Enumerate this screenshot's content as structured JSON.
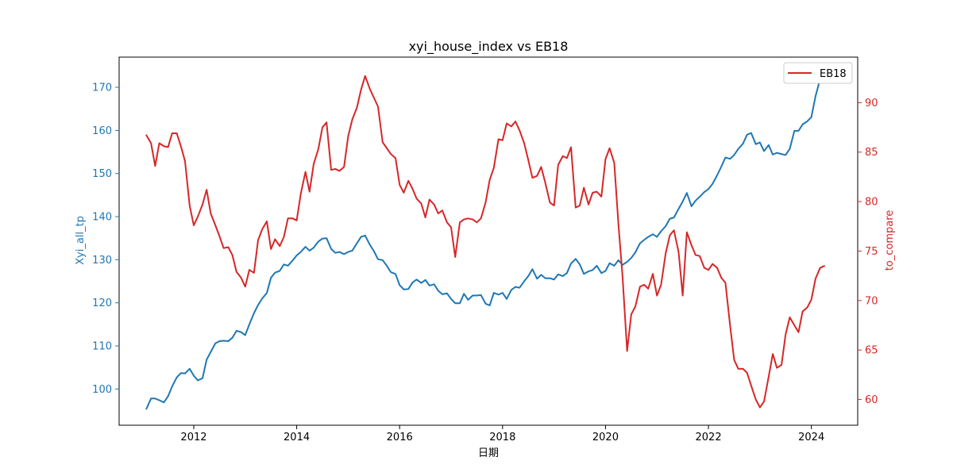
{
  "chart_data": {
    "type": "line",
    "title": "xyi_house_index vs EB18",
    "xlabel": "日期",
    "ylabel_left": "Xyi_all_tp",
    "ylabel_right": "to_compare",
    "colors": {
      "left": "#1f77b4",
      "right": "#d62728"
    },
    "x_ticks": [
      "2012",
      "2014",
      "2016",
      "2018",
      "2020",
      "2022",
      "2024"
    ],
    "x_tick_values": [
      2012,
      2014,
      2016,
      2018,
      2020,
      2022,
      2024
    ],
    "xlim": [
      2010.55,
      2024.9
    ],
    "y_left_ticks": [
      "100",
      "110",
      "120",
      "130",
      "140",
      "150",
      "160",
      "170"
    ],
    "y_left_tick_values": [
      100,
      110,
      120,
      130,
      140,
      150,
      160,
      170
    ],
    "y_left_lim": [
      91.6,
      177.0
    ],
    "y_right_ticks": [
      "60",
      "65",
      "70",
      "75",
      "80",
      "85",
      "90"
    ],
    "y_right_tick_values": [
      60,
      65,
      70,
      75,
      80,
      85,
      90
    ],
    "y_right_lim": [
      57.4,
      94.6
    ],
    "legend": {
      "position": "top-right",
      "entries": [
        "EB18"
      ]
    },
    "series": [
      {
        "axis": "left",
        "x": [
          2011.08,
          2011.17,
          2011.25,
          2011.33,
          2011.42,
          2011.5,
          2011.58,
          2011.67,
          2011.75,
          2011.83,
          2011.92,
          2012.0,
          2012.08,
          2012.17,
          2012.25,
          2012.33,
          2012.42,
          2012.5,
          2012.58,
          2012.67,
          2012.75,
          2012.83,
          2012.92,
          2013.0,
          2013.08,
          2013.17,
          2013.25,
          2013.33,
          2013.42,
          2013.5,
          2013.58,
          2013.67,
          2013.75,
          2013.83,
          2013.92,
          2014.0,
          2014.08,
          2014.17,
          2014.25,
          2014.33,
          2014.42,
          2014.5,
          2014.58,
          2014.67,
          2014.75,
          2014.83,
          2014.92,
          2015.0,
          2015.08,
          2015.17,
          2015.25,
          2015.33,
          2015.42,
          2015.5,
          2015.58,
          2015.67,
          2015.75,
          2015.83,
          2015.92,
          2016.0,
          2016.08,
          2016.17,
          2016.25,
          2016.33,
          2016.42,
          2016.5,
          2016.58,
          2016.67,
          2016.75,
          2016.83,
          2016.92,
          2017.0,
          2017.08,
          2017.17,
          2017.25,
          2017.33,
          2017.42,
          2017.5,
          2017.58,
          2017.67,
          2017.75,
          2017.83,
          2017.92,
          2018.0,
          2018.08,
          2018.17,
          2018.25,
          2018.33,
          2018.42,
          2018.5,
          2018.58,
          2018.67,
          2018.75,
          2018.83,
          2018.92,
          2019.0,
          2019.08,
          2019.17,
          2019.25,
          2019.33,
          2019.42,
          2019.5,
          2019.58,
          2019.67,
          2019.75,
          2019.83,
          2019.92,
          2020.0,
          2020.08,
          2020.17,
          2020.25,
          2020.33,
          2020.42,
          2020.5,
          2020.58,
          2020.67,
          2020.75,
          2020.83,
          2020.92,
          2021.0,
          2021.08,
          2021.17,
          2021.25,
          2021.33,
          2021.42,
          2021.5,
          2021.58,
          2021.67,
          2021.75,
          2021.83,
          2021.92,
          2022.0,
          2022.08,
          2022.17,
          2022.25,
          2022.33,
          2022.42,
          2022.5,
          2022.58,
          2022.67,
          2022.75,
          2022.83,
          2022.92,
          2023.0,
          2023.08,
          2023.17,
          2023.25,
          2023.33,
          2023.42,
          2023.5,
          2023.58,
          2023.67,
          2023.75,
          2023.83,
          2023.92,
          2024.0,
          2024.08,
          2024.17,
          2024.25
        ],
        "values": [
          95.4,
          97.8,
          97.8,
          97.4,
          96.9,
          98.3,
          100.6,
          102.7,
          103.7,
          103.6,
          104.7,
          103.1,
          102.0,
          102.5,
          106.8,
          108.6,
          110.6,
          111.1,
          111.2,
          111.1,
          111.9,
          113.5,
          113.2,
          112.5,
          115.0,
          117.6,
          119.5,
          121.0,
          122.3,
          125.8,
          127.0,
          127.4,
          128.9,
          128.6,
          129.8,
          131.0,
          131.8,
          133.0,
          132.1,
          132.8,
          134.2,
          134.9,
          135.0,
          132.5,
          131.6,
          131.8,
          131.3,
          131.8,
          132.1,
          133.8,
          135.3,
          135.6,
          133.5,
          132.0,
          130.1,
          129.9,
          128.6,
          127.1,
          126.7,
          124.1,
          123.1,
          123.2,
          124.7,
          125.4,
          124.6,
          125.3,
          124.0,
          124.3,
          122.8,
          122.0,
          122.2,
          120.9,
          119.9,
          119.9,
          122.1,
          120.7,
          121.7,
          121.7,
          121.8,
          119.8,
          119.4,
          122.3,
          121.9,
          122.3,
          120.9,
          123.0,
          123.7,
          123.5,
          125.0,
          126.2,
          127.8,
          125.6,
          126.5,
          125.7,
          125.7,
          125.4,
          126.6,
          126.2,
          126.9,
          129.1,
          130.2,
          128.9,
          126.7,
          127.3,
          127.6,
          128.6,
          126.9,
          127.4,
          129.2,
          128.6,
          129.9,
          128.8,
          129.5,
          130.4,
          131.7,
          133.8,
          134.6,
          135.3,
          135.9,
          135.3,
          136.6,
          137.8,
          139.5,
          139.8,
          141.8,
          143.5,
          145.5,
          142.4,
          143.7,
          144.6,
          145.7,
          146.4,
          147.6,
          149.6,
          151.6,
          153.7,
          153.4,
          154.3,
          155.7,
          156.9,
          159.0,
          159.4,
          156.8,
          157.2,
          155.2,
          156.6,
          154.4,
          154.8,
          154.5,
          154.3,
          155.7,
          159.9,
          159.9,
          161.4,
          162.1,
          163.1,
          167.9,
          171.9,
          173.2
        ]
      },
      {
        "name": "EB18",
        "axis": "right",
        "x": [
          2011.08,
          2011.17,
          2011.25,
          2011.33,
          2011.42,
          2011.5,
          2011.58,
          2011.67,
          2011.75,
          2011.83,
          2011.92,
          2012.0,
          2012.08,
          2012.17,
          2012.25,
          2012.33,
          2012.42,
          2012.5,
          2012.58,
          2012.67,
          2012.75,
          2012.83,
          2012.92,
          2013.0,
          2013.08,
          2013.17,
          2013.25,
          2013.33,
          2013.42,
          2013.5,
          2013.58,
          2013.67,
          2013.75,
          2013.83,
          2013.92,
          2014.0,
          2014.08,
          2014.17,
          2014.25,
          2014.33,
          2014.42,
          2014.5,
          2014.58,
          2014.67,
          2014.75,
          2014.83,
          2014.92,
          2015.0,
          2015.08,
          2015.17,
          2015.25,
          2015.33,
          2015.42,
          2015.5,
          2015.58,
          2015.67,
          2015.75,
          2015.83,
          2015.92,
          2016.0,
          2016.08,
          2016.17,
          2016.25,
          2016.33,
          2016.42,
          2016.5,
          2016.58,
          2016.67,
          2016.75,
          2016.83,
          2016.92,
          2017.0,
          2017.08,
          2017.17,
          2017.25,
          2017.33,
          2017.42,
          2017.5,
          2017.58,
          2017.67,
          2017.75,
          2017.83,
          2017.92,
          2018.0,
          2018.08,
          2018.17,
          2018.25,
          2018.33,
          2018.42,
          2018.5,
          2018.58,
          2018.67,
          2018.75,
          2018.83,
          2018.92,
          2019.0,
          2019.08,
          2019.17,
          2019.25,
          2019.33,
          2019.42,
          2019.5,
          2019.58,
          2019.67,
          2019.75,
          2019.83,
          2019.92,
          2020.0,
          2020.08,
          2020.17,
          2020.25,
          2020.33,
          2020.42,
          2020.5,
          2020.58,
          2020.67,
          2020.75,
          2020.83,
          2020.92,
          2021.0,
          2021.08,
          2021.17,
          2021.25,
          2021.33,
          2021.42,
          2021.5,
          2021.58,
          2021.67,
          2021.75,
          2021.83,
          2021.92,
          2022.0,
          2022.08,
          2022.17,
          2022.25,
          2022.33,
          2022.42,
          2022.5,
          2022.58,
          2022.67,
          2022.75,
          2022.83,
          2022.92,
          2023.0,
          2023.08,
          2023.17,
          2023.25,
          2023.33,
          2023.42,
          2023.5,
          2023.58,
          2023.67,
          2023.75,
          2023.83,
          2023.92,
          2024.0,
          2024.08,
          2024.17,
          2024.25
        ],
        "values": [
          86.7,
          85.9,
          83.6,
          85.9,
          85.6,
          85.5,
          86.9,
          86.9,
          85.6,
          84.1,
          79.6,
          77.6,
          78.5,
          79.7,
          81.2,
          78.8,
          77.6,
          76.5,
          75.3,
          75.4,
          74.6,
          72.9,
          72.3,
          71.4,
          73.1,
          72.8,
          76.1,
          77.2,
          78.0,
          75.2,
          76.2,
          75.5,
          76.4,
          78.3,
          78.3,
          78.1,
          80.8,
          83.0,
          81.0,
          83.8,
          85.3,
          87.5,
          88.0,
          83.2,
          83.3,
          83.1,
          83.5,
          86.6,
          88.3,
          89.5,
          91.3,
          92.7,
          91.4,
          90.5,
          89.6,
          86.0,
          85.4,
          84.8,
          84.4,
          81.7,
          80.9,
          82.1,
          81.3,
          80.3,
          79.8,
          78.4,
          80.2,
          79.7,
          78.8,
          79.1,
          77.9,
          77.4,
          74.4,
          77.9,
          78.2,
          78.3,
          78.2,
          77.9,
          78.3,
          79.9,
          82.2,
          83.4,
          86.3,
          86.2,
          87.9,
          87.6,
          88.1,
          87.2,
          85.9,
          84.2,
          82.4,
          82.6,
          83.5,
          81.9,
          79.9,
          79.6,
          83.7,
          84.6,
          84.4,
          85.5,
          79.4,
          79.6,
          81.4,
          79.7,
          80.9,
          81.0,
          80.5,
          84.3,
          85.4,
          83.9,
          77.8,
          72.5,
          64.9,
          68.6,
          69.4,
          71.4,
          71.6,
          71.2,
          72.7,
          70.5,
          71.6,
          74.8,
          76.6,
          77.1,
          74.9,
          70.5,
          76.9,
          75.6,
          74.6,
          74.5,
          73.3,
          73.1,
          73.7,
          73.3,
          72.3,
          71.8,
          67.5,
          64.0,
          63.1,
          63.1,
          62.7,
          61.4,
          60.0,
          59.2,
          59.8,
          62.3,
          64.6,
          63.2,
          63.5,
          66.6,
          68.3,
          67.5,
          66.8,
          68.9,
          69.3,
          70.1,
          72.2,
          73.3,
          73.5
        ]
      }
    ]
  }
}
